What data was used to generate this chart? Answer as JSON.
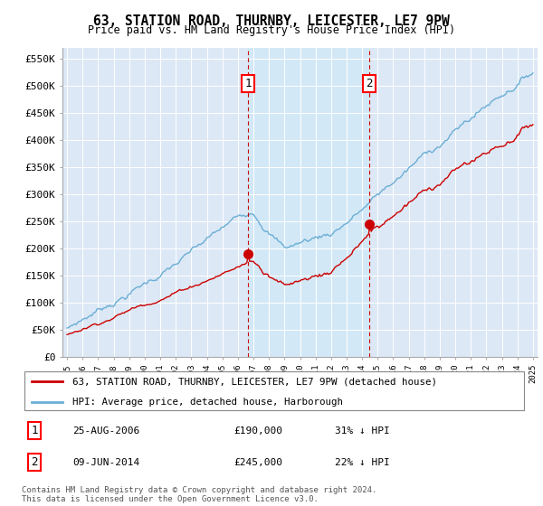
{
  "title": "63, STATION ROAD, THURNBY, LEICESTER, LE7 9PW",
  "subtitle": "Price paid vs. HM Land Registry's House Price Index (HPI)",
  "legend_entry1": "63, STATION ROAD, THURNBY, LEICESTER, LE7 9PW (detached house)",
  "legend_entry2": "HPI: Average price, detached house, Harborough",
  "annotation1_label": "1",
  "annotation1_date": "25-AUG-2006",
  "annotation1_price": "£190,000",
  "annotation1_hpi": "31% ↓ HPI",
  "annotation1_year": 2006.65,
  "annotation1_value": 190000,
  "annotation2_label": "2",
  "annotation2_date": "09-JUN-2014",
  "annotation2_price": "£245,000",
  "annotation2_hpi": "22% ↓ HPI",
  "annotation2_year": 2014.44,
  "annotation2_value": 245000,
  "ylim": [
    0,
    570000
  ],
  "yticks": [
    0,
    50000,
    100000,
    150000,
    200000,
    250000,
    300000,
    350000,
    400000,
    450000,
    500000,
    550000
  ],
  "hpi_color": "#6baed6",
  "price_color": "#cc0000",
  "background_color": "#dce8f5",
  "shade_color": "#cce0f0",
  "footer": "Contains HM Land Registry data © Crown copyright and database right 2024.\nThis data is licensed under the Open Government Licence v3.0.",
  "xmin": 1995,
  "xmax": 2025
}
